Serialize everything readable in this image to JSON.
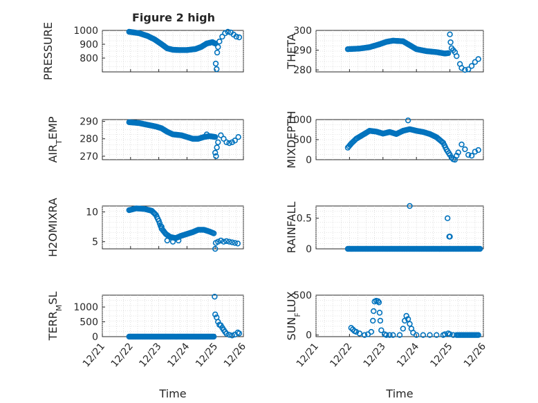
{
  "figure_title": "Figure 2 high",
  "chart_data": [
    {
      "type": "scatter",
      "ylabel": "PRESSURE",
      "ylim": [
        700,
        1000
      ],
      "yticks": [
        800,
        900,
        1000
      ],
      "ytick_labels": [
        "800",
        "900",
        "1000"
      ],
      "xlim": [
        0,
        5
      ],
      "xticks": [
        0,
        1,
        2,
        3,
        4,
        5
      ],
      "xtick_labels": [
        "12/21",
        "12/22",
        "12/23",
        "12/24",
        "12/25",
        "12/26"
      ],
      "xlabel": "",
      "grid": true,
      "segments": [
        [
          0.95,
          990
        ],
        [
          1.3,
          980
        ],
        [
          1.6,
          960
        ],
        [
          1.85,
          935
        ],
        [
          2.1,
          900
        ],
        [
          2.3,
          870
        ],
        [
          2.5,
          860
        ],
        [
          2.7,
          858
        ],
        [
          3.0,
          858
        ],
        [
          3.3,
          865
        ],
        [
          3.5,
          880
        ],
        [
          3.7,
          905
        ],
        [
          3.9,
          915
        ],
        [
          4.0,
          905
        ]
      ],
      "extra": [
        [
          4.02,
          760
        ],
        [
          4.05,
          720
        ],
        [
          4.07,
          840
        ],
        [
          4.1,
          880
        ],
        [
          4.15,
          920
        ],
        [
          4.25,
          955
        ],
        [
          4.35,
          980
        ],
        [
          4.45,
          990
        ],
        [
          4.55,
          985
        ],
        [
          4.65,
          970
        ],
        [
          4.75,
          955
        ],
        [
          4.85,
          950
        ]
      ]
    },
    {
      "type": "scatter",
      "ylabel": "THETA",
      "ylim": [
        279,
        300
      ],
      "yticks": [
        280,
        290,
        300
      ],
      "ytick_labels": [
        "280",
        "290",
        "300"
      ],
      "xlim": [
        0,
        5
      ],
      "xticks": [
        0,
        1,
        2,
        3,
        4,
        5
      ],
      "xtick_labels": [
        "12/21",
        "12/22",
        "12/23",
        "12/24",
        "12/25",
        "12/26"
      ],
      "xlabel": "",
      "grid": true,
      "segments": [
        [
          0.95,
          290.5
        ],
        [
          1.3,
          290.8
        ],
        [
          1.6,
          291.5
        ],
        [
          1.9,
          293
        ],
        [
          2.1,
          294.2
        ],
        [
          2.3,
          294.8
        ],
        [
          2.6,
          294.5
        ],
        [
          2.8,
          292.5
        ],
        [
          3.0,
          290.5
        ],
        [
          3.3,
          289.5
        ],
        [
          3.6,
          289
        ],
        [
          3.85,
          288.3
        ],
        [
          3.95,
          288.5
        ]
      ],
      "extra": [
        [
          4.0,
          298
        ],
        [
          4.02,
          294
        ],
        [
          4.05,
          291
        ],
        [
          4.1,
          290
        ],
        [
          4.15,
          289
        ],
        [
          4.2,
          287
        ],
        [
          4.3,
          283
        ],
        [
          4.35,
          281
        ],
        [
          4.45,
          280
        ],
        [
          4.55,
          280.3
        ],
        [
          4.65,
          282
        ],
        [
          4.75,
          284
        ],
        [
          4.85,
          285.5
        ]
      ]
    },
    {
      "type": "scatter",
      "ylabel": "AIR_TEMP",
      "ylim": [
        268,
        291
      ],
      "yticks": [
        270,
        280,
        290
      ],
      "ytick_labels": [
        "270",
        "280",
        "290"
      ],
      "xlim": [
        0,
        5
      ],
      "xticks": [
        0,
        1,
        2,
        3,
        4,
        5
      ],
      "xtick_labels": [
        "12/21",
        "12/22",
        "12/23",
        "12/24",
        "12/25",
        "12/26"
      ],
      "xlabel": "",
      "grid": true,
      "segments": [
        [
          0.95,
          289.5
        ],
        [
          1.3,
          289
        ],
        [
          1.6,
          288
        ],
        [
          1.9,
          287
        ],
        [
          2.1,
          286
        ],
        [
          2.3,
          284
        ],
        [
          2.5,
          282.5
        ],
        [
          2.8,
          282
        ],
        [
          3.0,
          281
        ],
        [
          3.2,
          280
        ],
        [
          3.4,
          280
        ],
        [
          3.6,
          281
        ],
        [
          3.8,
          281.5
        ],
        [
          4.0,
          281
        ]
      ],
      "extra": [
        [
          3.7,
          282.5
        ],
        [
          4.0,
          272
        ],
        [
          4.03,
          270
        ],
        [
          4.06,
          275
        ],
        [
          4.1,
          278
        ],
        [
          4.2,
          282
        ],
        [
          4.3,
          280
        ],
        [
          4.4,
          278
        ],
        [
          4.5,
          277.5
        ],
        [
          4.6,
          278
        ],
        [
          4.7,
          279
        ],
        [
          4.82,
          281
        ]
      ]
    },
    {
      "type": "scatter",
      "ylabel": "MIXDEPTH",
      "ylim": [
        0,
        1000
      ],
      "yticks": [
        0,
        500,
        1000
      ],
      "ytick_labels": [
        "0",
        "500",
        "1000"
      ],
      "xlim": [
        0,
        5
      ],
      "xticks": [
        0,
        1,
        2,
        3,
        4,
        5
      ],
      "xtick_labels": [
        "12/21",
        "12/22",
        "12/23",
        "12/24",
        "12/25",
        "12/26"
      ],
      "xlabel": "",
      "grid": true,
      "segments": [
        [
          0.95,
          300
        ],
        [
          1.05,
          400
        ],
        [
          1.2,
          520
        ],
        [
          1.4,
          620
        ],
        [
          1.6,
          720
        ],
        [
          1.8,
          700
        ],
        [
          2.0,
          650
        ],
        [
          2.2,
          690
        ],
        [
          2.4,
          640
        ],
        [
          2.6,
          720
        ],
        [
          2.8,
          760
        ],
        [
          3.0,
          720
        ],
        [
          3.2,
          690
        ],
        [
          3.4,
          640
        ],
        [
          3.6,
          560
        ],
        [
          3.8,
          420
        ],
        [
          3.9,
          250
        ],
        [
          4.0,
          120
        ]
      ],
      "extra": [
        [
          2.75,
          980
        ],
        [
          4.05,
          50
        ],
        [
          4.1,
          10
        ],
        [
          4.15,
          0
        ],
        [
          4.2,
          100
        ],
        [
          4.25,
          180
        ],
        [
          4.35,
          380
        ],
        [
          4.45,
          260
        ],
        [
          4.55,
          120
        ],
        [
          4.65,
          100
        ],
        [
          4.75,
          200
        ],
        [
          4.85,
          240
        ]
      ]
    },
    {
      "type": "scatter",
      "ylabel": "H2OMIXRA",
      "ylim": [
        3.8,
        11
      ],
      "yticks": [
        5,
        10
      ],
      "ytick_labels": [
        "5",
        "10"
      ],
      "xlim": [
        0,
        5
      ],
      "xticks": [
        0,
        1,
        2,
        3,
        4,
        5
      ],
      "xtick_labels": [
        "12/21",
        "12/22",
        "12/23",
        "12/24",
        "12/25",
        "12/26"
      ],
      "xlabel": "",
      "grid": true,
      "segments": [
        [
          0.95,
          10.3
        ],
        [
          1.2,
          10.6
        ],
        [
          1.5,
          10.5
        ],
        [
          1.75,
          10.2
        ],
        [
          1.9,
          9.5
        ],
        [
          2.0,
          8.5
        ],
        [
          2.1,
          7.2
        ],
        [
          2.25,
          6.3
        ],
        [
          2.4,
          5.8
        ],
        [
          2.6,
          5.6
        ],
        [
          2.8,
          6.0
        ],
        [
          3.0,
          6.3
        ],
        [
          3.2,
          6.6
        ],
        [
          3.4,
          7.0
        ],
        [
          3.6,
          7.0
        ],
        [
          3.8,
          6.7
        ],
        [
          3.95,
          6.4
        ]
      ],
      "extra": [
        [
          2.1,
          7.5
        ],
        [
          2.3,
          5.2
        ],
        [
          2.5,
          5.0
        ],
        [
          2.7,
          5.2
        ],
        [
          4.0,
          3.8
        ],
        [
          4.02,
          4.8
        ],
        [
          4.1,
          5.0
        ],
        [
          4.2,
          5.2
        ],
        [
          4.3,
          5.0
        ],
        [
          4.4,
          5.1
        ],
        [
          4.5,
          5.0
        ],
        [
          4.6,
          4.9
        ],
        [
          4.7,
          4.8
        ],
        [
          4.8,
          4.7
        ]
      ]
    },
    {
      "type": "scatter",
      "ylabel": "RAINFALL",
      "ylim": [
        0,
        0.7
      ],
      "yticks": [
        0,
        0.5
      ],
      "ytick_labels": [
        "0",
        "0.5"
      ],
      "xlim": [
        0,
        5
      ],
      "xticks": [
        0,
        1,
        2,
        3,
        4,
        5
      ],
      "xtick_labels": [
        "12/21",
        "12/22",
        "12/23",
        "12/24",
        "12/25",
        "12/26"
      ],
      "xlabel": "",
      "grid": true,
      "segments": [
        [
          0.95,
          0
        ],
        [
          4.9,
          0
        ]
      ],
      "extra": [
        [
          2.8,
          0.7
        ],
        [
          3.93,
          0.5
        ],
        [
          3.98,
          0.2
        ],
        [
          4.0,
          0.2
        ]
      ]
    },
    {
      "type": "scatter",
      "ylabel": "TERR_MSL",
      "ylim": [
        0,
        1400
      ],
      "yticks": [
        0,
        500,
        1000
      ],
      "ytick_labels": [
        "0",
        "500",
        "1000"
      ],
      "xlim": [
        0,
        5
      ],
      "xticks": [
        0,
        1,
        2,
        3,
        4,
        5
      ],
      "xtick_labels": [
        "12/21",
        "12/22",
        "12/23",
        "12/24",
        "12/25",
        "12/26"
      ],
      "xlabel": "Time",
      "grid": true,
      "segments": [
        [
          0.95,
          0
        ],
        [
          3.95,
          0
        ]
      ],
      "extra": [
        [
          3.98,
          1350
        ],
        [
          4.0,
          750
        ],
        [
          4.05,
          650
        ],
        [
          4.1,
          500
        ],
        [
          4.15,
          400
        ],
        [
          4.2,
          380
        ],
        [
          4.25,
          300
        ],
        [
          4.3,
          230
        ],
        [
          4.35,
          160
        ],
        [
          4.4,
          100
        ],
        [
          4.5,
          60
        ],
        [
          4.6,
          40
        ],
        [
          4.7,
          70
        ],
        [
          4.8,
          140
        ],
        [
          4.85,
          110
        ]
      ]
    },
    {
      "type": "scatter",
      "ylabel": "SUN_FLUX",
      "ylim": [
        -20,
        500
      ],
      "yticks": [
        0,
        500
      ],
      "ytick_labels": [
        "0",
        "500"
      ],
      "xlim": [
        0,
        5
      ],
      "xticks": [
        0,
        1,
        2,
        3,
        4,
        5
      ],
      "xtick_labels": [
        "12/21",
        "12/22",
        "12/23",
        "12/24",
        "12/25",
        "12/26"
      ],
      "xlabel": "Time",
      "grid": true,
      "segments": [
        [
          4.2,
          0
        ],
        [
          4.85,
          0
        ]
      ],
      "extra": [
        [
          1.05,
          90
        ],
        [
          1.1,
          70
        ],
        [
          1.15,
          50
        ],
        [
          1.2,
          40
        ],
        [
          1.3,
          20
        ],
        [
          1.45,
          0
        ],
        [
          1.55,
          10
        ],
        [
          1.65,
          40
        ],
        [
          1.7,
          180
        ],
        [
          1.72,
          300
        ],
        [
          1.75,
          420
        ],
        [
          1.8,
          430
        ],
        [
          1.85,
          425
        ],
        [
          1.88,
          410
        ],
        [
          1.9,
          280
        ],
        [
          1.92,
          180
        ],
        [
          1.95,
          60
        ],
        [
          2.05,
          10
        ],
        [
          2.1,
          0
        ],
        [
          2.2,
          0
        ],
        [
          2.3,
          0
        ],
        [
          2.5,
          0
        ],
        [
          2.6,
          80
        ],
        [
          2.65,
          180
        ],
        [
          2.7,
          240
        ],
        [
          2.75,
          200
        ],
        [
          2.8,
          140
        ],
        [
          2.85,
          80
        ],
        [
          2.9,
          30
        ],
        [
          3.0,
          0
        ],
        [
          3.2,
          0
        ],
        [
          3.4,
          0
        ],
        [
          3.6,
          0
        ],
        [
          3.8,
          0
        ],
        [
          3.85,
          10
        ],
        [
          3.95,
          20
        ],
        [
          4.0,
          10
        ],
        [
          4.1,
          0
        ]
      ]
    }
  ]
}
